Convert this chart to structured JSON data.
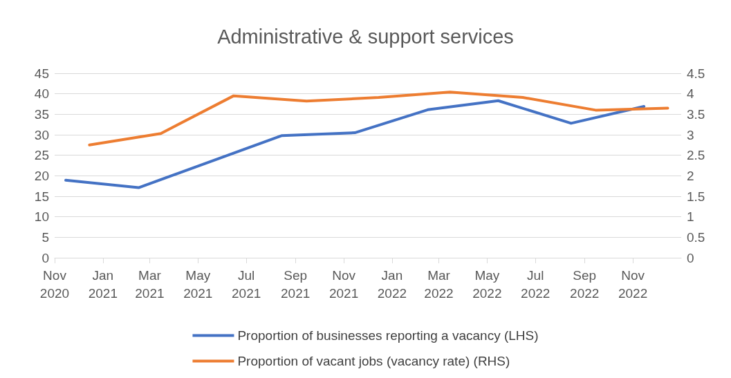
{
  "chart_data": {
    "type": "line",
    "title": "Administrative & support services",
    "xlim": [
      "2020-11-01",
      "2023-01-01"
    ],
    "xticks": [
      {
        "value": "2020-11-01",
        "label": "Nov\n2020"
      },
      {
        "value": "2021-01-01",
        "label": "Jan\n2021"
      },
      {
        "value": "2021-03-01",
        "label": "Mar\n2021"
      },
      {
        "value": "2021-05-01",
        "label": "May\n2021"
      },
      {
        "value": "2021-07-01",
        "label": "Jul\n2021"
      },
      {
        "value": "2021-09-01",
        "label": "Sep\n2021"
      },
      {
        "value": "2021-11-01",
        "label": "Nov\n2021"
      },
      {
        "value": "2022-01-01",
        "label": "Jan\n2022"
      },
      {
        "value": "2022-03-01",
        "label": "Mar\n2022"
      },
      {
        "value": "2022-05-01",
        "label": "May\n2022"
      },
      {
        "value": "2022-07-01",
        "label": "Jul\n2022"
      },
      {
        "value": "2022-09-01",
        "label": "Sep\n2022"
      },
      {
        "value": "2022-11-01",
        "label": "Nov\n2022"
      }
    ],
    "ylim": [
      0,
      45
    ],
    "yticks": [
      0,
      5,
      10,
      15,
      20,
      25,
      30,
      35,
      40,
      45
    ],
    "y2lim": [
      0,
      4.5
    ],
    "y2ticks": [
      0,
      0.5,
      1,
      1.5,
      2,
      2.5,
      3,
      3.5,
      4,
      4.5
    ],
    "series": [
      {
        "name": "Proportion of businesses reporting a vacancy (LHS)",
        "color": "#4472c4",
        "x": [
          "2020-11-15",
          "2021-02-15",
          "2021-08-15",
          "2021-11-15",
          "2022-02-15",
          "2022-05-15",
          "2022-08-15",
          "2022-11-15"
        ],
        "values": [
          18.9,
          17.1,
          29.8,
          30.5,
          36.1,
          38.3,
          32.8,
          36.9
        ]
      },
      {
        "name": "Proportion of vacant jobs (vacancy rate) (RHS)",
        "color": "#ed7d31",
        "axis": "y2",
        "x": [
          "2020-12-15",
          "2021-03-15",
          "2021-06-15",
          "2021-09-15",
          "2021-12-15",
          "2022-03-15",
          "2022-06-15",
          "2022-09-15",
          "2022-12-15"
        ],
        "values": [
          2.75,
          3.03,
          3.95,
          3.82,
          3.91,
          4.04,
          3.91,
          3.6,
          3.65
        ]
      }
    ],
    "grid": "y",
    "legend": "bottom",
    "marker": "none",
    "line_style": "solid"
  }
}
